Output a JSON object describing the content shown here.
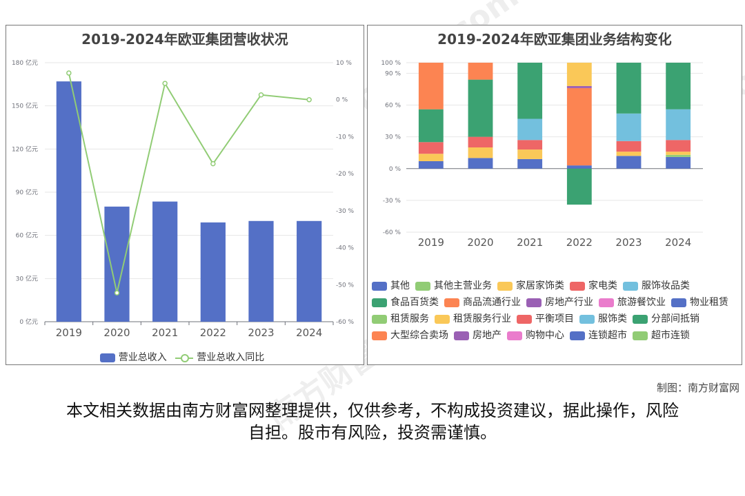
{
  "credit": "制图：南方财富网",
  "disclaimer": "本文相关数据由南方财富网整理提供，仅供参考，不构成投资建议，据此操作，风险自担。股市有风险，投资需谨慎。",
  "watermark": "南方财富网 southmoney.com",
  "chart_data": [
    {
      "type": "bar",
      "title": "2019-2024年欧亚集团营收状况",
      "categories": [
        "2019",
        "2020",
        "2021",
        "2022",
        "2023",
        "2024"
      ],
      "y_left": {
        "range": [
          0,
          180
        ],
        "ticks": [
          "0 亿元",
          "30 亿元",
          "60 亿元",
          "90 亿元",
          "120 亿元",
          "150 亿元",
          "180 亿元"
        ]
      },
      "y_right": {
        "range": [
          -60,
          10
        ],
        "ticks": [
          "-60 %",
          "-50 %",
          "-40 %",
          "-30 %",
          "-20 %",
          "-10 %",
          "0 %",
          "10 %"
        ]
      },
      "series": [
        {
          "name": "营业总收入",
          "type": "bar",
          "color": "#5470c6",
          "values": [
            167,
            80,
            83.5,
            69,
            70,
            70
          ]
        },
        {
          "name": "营业总收入同比",
          "type": "line",
          "axis": "right",
          "color": "#91cc75",
          "values": [
            7.2,
            -52.2,
            4.4,
            -17.3,
            1.3,
            0
          ]
        }
      ],
      "legend_position": "bottom"
    },
    {
      "type": "bar",
      "stacked": true,
      "title": "2019-2024年欧亚集团业务结构变化",
      "categories": [
        "2019",
        "2020",
        "2021",
        "2022",
        "2023",
        "2024"
      ],
      "y_range": [
        -60,
        100
      ],
      "y_ticks": [
        "-60 %",
        "-30 %",
        "0 %",
        "30 %",
        "60 %",
        "90 %",
        "100 %"
      ],
      "segments": [
        [
          {
            "series": "连锁超市",
            "color": "#5470c6",
            "from": 0,
            "to": 7
          },
          {
            "series": "租赁服务行业",
            "color": "#fac858",
            "from": 7,
            "to": 14
          },
          {
            "series": "平衡项目",
            "color": "#ee6666",
            "from": 14,
            "to": 25
          },
          {
            "series": "分部间抵销",
            "color": "#3ba272",
            "from": 25,
            "to": 56
          },
          {
            "series": "大型综合卖场",
            "color": "#fc8452",
            "from": 56,
            "to": 100
          }
        ],
        [
          {
            "series": "物业租赁",
            "color": "#5470c6",
            "from": 0,
            "to": 10
          },
          {
            "series": "租赁服务行业",
            "color": "#fac858",
            "from": 10,
            "to": 20
          },
          {
            "series": "平衡项目",
            "color": "#ee6666",
            "from": 20,
            "to": 30
          },
          {
            "series": "分部间抵销",
            "color": "#3ba272",
            "from": 30,
            "to": 84
          },
          {
            "series": "大型综合卖场",
            "color": "#fc8452",
            "from": 84,
            "to": 100
          }
        ],
        [
          {
            "series": "物业租赁",
            "color": "#5470c6",
            "from": 0,
            "to": 9
          },
          {
            "series": "租赁服务行业",
            "color": "#fac858",
            "from": 9,
            "to": 18
          },
          {
            "series": "家电类",
            "color": "#ee6666",
            "from": 18,
            "to": 27
          },
          {
            "series": "服饰类",
            "color": "#73c0de",
            "from": 27,
            "to": 47
          },
          {
            "series": "食品百货类",
            "color": "#3ba272",
            "from": 47,
            "to": 100
          }
        ],
        [
          {
            "series": "物业租赁",
            "color": "#5470c6",
            "from": 0,
            "to": 3
          },
          {
            "series": "商品流通行业",
            "color": "#fc8452",
            "from": 3,
            "to": 76
          },
          {
            "series": "房地产行业",
            "color": "#9a60b4",
            "from": 76,
            "to": 78
          },
          {
            "series": "家居家饰类",
            "color": "#fac858",
            "from": 78,
            "to": 100
          },
          {
            "series": "分部间抵销",
            "color": "#3ba272",
            "from": -34,
            "to": 0
          }
        ],
        [
          {
            "series": "物业租赁",
            "color": "#5470c6",
            "from": 0,
            "to": 12
          },
          {
            "series": "租赁服务行业",
            "color": "#fac858",
            "from": 12,
            "to": 16
          },
          {
            "series": "家电类",
            "color": "#ee6666",
            "from": 16,
            "to": 26
          },
          {
            "series": "服饰妆品类",
            "color": "#73c0de",
            "from": 26,
            "to": 52
          },
          {
            "series": "食品百货类",
            "color": "#3ba272",
            "from": 52,
            "to": 100
          }
        ],
        [
          {
            "series": "物业租赁",
            "color": "#5470c6",
            "from": 0,
            "to": 11
          },
          {
            "series": "其他主营业务",
            "color": "#91cc75",
            "from": 11,
            "to": 13
          },
          {
            "series": "租赁服务行业",
            "color": "#fac858",
            "from": 13,
            "to": 16
          },
          {
            "series": "家电类",
            "color": "#ee6666",
            "from": 16,
            "to": 27
          },
          {
            "series": "服饰妆品类",
            "color": "#73c0de",
            "from": 27,
            "to": 56
          },
          {
            "series": "食品百货类",
            "color": "#3ba272",
            "from": 56,
            "to": 100
          }
        ]
      ],
      "legend": [
        {
          "name": "其他",
          "color": "#5470c6"
        },
        {
          "name": "其他主营业务",
          "color": "#91cc75"
        },
        {
          "name": "家居家饰类",
          "color": "#fac858"
        },
        {
          "name": "家电类",
          "color": "#ee6666"
        },
        {
          "name": "服饰妆品类",
          "color": "#73c0de"
        },
        {
          "name": "食品百货类",
          "color": "#3ba272"
        },
        {
          "name": "商品流通行业",
          "color": "#fc8452"
        },
        {
          "name": "房地产行业",
          "color": "#9a60b4"
        },
        {
          "name": "旅游餐饮业",
          "color": "#ea7ccc"
        },
        {
          "name": "物业租赁",
          "color": "#5470c6"
        },
        {
          "name": "租赁服务",
          "color": "#91cc75"
        },
        {
          "name": "租赁服务行业",
          "color": "#fac858"
        },
        {
          "name": "平衡项目",
          "color": "#ee6666"
        },
        {
          "name": "服饰类",
          "color": "#73c0de"
        },
        {
          "name": "分部间抵销",
          "color": "#3ba272"
        },
        {
          "name": "大型综合卖场",
          "color": "#fc8452"
        },
        {
          "name": "房地产",
          "color": "#9a60b4"
        },
        {
          "name": "购物中心",
          "color": "#ea7ccc"
        },
        {
          "name": "连锁超市",
          "color": "#5470c6"
        },
        {
          "name": "超市连锁",
          "color": "#91cc75"
        }
      ],
      "legend_position": "bottom"
    }
  ]
}
